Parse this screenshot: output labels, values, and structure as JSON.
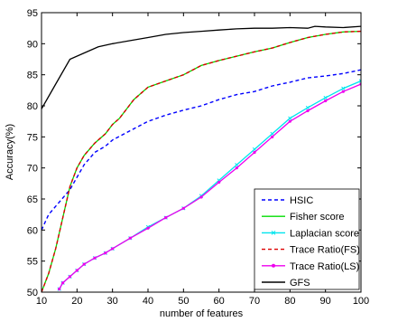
{
  "chart_data": {
    "type": "line",
    "title": "",
    "xlabel": "number of features",
    "ylabel": "Accuracy(%)",
    "xlim": [
      10,
      100
    ],
    "ylim": [
      50,
      95
    ],
    "xticks": [
      10,
      20,
      30,
      40,
      50,
      60,
      70,
      80,
      90,
      100
    ],
    "yticks": [
      50,
      55,
      60,
      65,
      70,
      75,
      80,
      85,
      90,
      95
    ],
    "xtick_labels": [
      "10",
      "20",
      "30",
      "40",
      "50",
      "60",
      "70",
      "80",
      "90",
      "100"
    ],
    "ytick_labels": [
      "50",
      "55",
      "60",
      "65",
      "70",
      "75",
      "80",
      "85",
      "90",
      "95"
    ],
    "grid": false,
    "legend_position": "bottom-right",
    "series": [
      {
        "name": "HSIC",
        "color": "#0000ff",
        "style": "dashed",
        "marker": "none",
        "x": [
          10,
          12,
          15,
          18,
          20,
          22,
          25,
          28,
          30,
          35,
          40,
          45,
          50,
          55,
          60,
          65,
          70,
          75,
          80,
          85,
          90,
          95,
          100
        ],
        "y": [
          60,
          62.5,
          64.5,
          66.5,
          68.5,
          70.5,
          72.5,
          73.5,
          74.5,
          76,
          77.5,
          78.5,
          79.3,
          80,
          81,
          81.8,
          82.3,
          83.2,
          83.8,
          84.5,
          84.8,
          85.2,
          85.8
        ]
      },
      {
        "name": "Fisher score",
        "color": "#00dd00",
        "style": "solid",
        "marker": "none",
        "x": [
          10,
          12,
          14,
          16,
          18,
          20,
          22,
          25,
          28,
          30,
          32,
          34,
          36,
          38,
          40,
          45,
          50,
          55,
          60,
          65,
          70,
          75,
          80,
          85,
          90,
          95,
          100
        ],
        "y": [
          50,
          53,
          57,
          62,
          67,
          70,
          72,
          74,
          75.5,
          77,
          78,
          79.5,
          81,
          82,
          83,
          84,
          85,
          86.5,
          87.3,
          88,
          88.7,
          89.3,
          90.2,
          91,
          91.5,
          91.9,
          92
        ],
        "x_stride_note": ""
      },
      {
        "name": "Laplacian score",
        "color": "#00e5ee",
        "style": "solid",
        "marker": "x",
        "x": [
          15,
          16,
          18,
          20,
          22,
          25,
          28,
          30,
          35,
          40,
          45,
          50,
          55,
          60,
          65,
          70,
          75,
          80,
          85,
          90,
          95,
          100
        ],
        "y": [
          50.5,
          51.5,
          52.5,
          53.5,
          54.5,
          55.5,
          56.3,
          57,
          58.7,
          60.5,
          62,
          63.5,
          65.5,
          68,
          70.5,
          73,
          75.5,
          78,
          79.7,
          81.3,
          82.8,
          84
        ]
      },
      {
        "name": "Trace Ratio(FS)",
        "color": "#dd0000",
        "style": "dashed",
        "marker": "none",
        "x": [
          10,
          12,
          14,
          16,
          18,
          20,
          22,
          25,
          28,
          30,
          32,
          34,
          36,
          38,
          40,
          45,
          50,
          55,
          60,
          65,
          70,
          75,
          80,
          85,
          90,
          95,
          100
        ],
        "y": [
          50,
          53,
          57,
          62,
          67,
          70,
          72,
          74,
          75.5,
          77,
          78,
          79.5,
          81,
          82,
          83,
          84,
          85,
          86.5,
          87.3,
          88,
          88.7,
          89.3,
          90.2,
          91,
          91.5,
          91.9,
          92
        ]
      },
      {
        "name": "Trace Ratio(LS)",
        "color": "#ee00ee",
        "style": "solid",
        "marker": "dot",
        "x": [
          15,
          16,
          18,
          20,
          22,
          25,
          28,
          30,
          35,
          40,
          45,
          50,
          55,
          60,
          65,
          70,
          75,
          80,
          85,
          90,
          95,
          100
        ],
        "y": [
          50.5,
          51.5,
          52.5,
          53.5,
          54.5,
          55.5,
          56.3,
          57,
          58.7,
          60.3,
          62,
          63.5,
          65.3,
          67.7,
          70,
          72.5,
          75,
          77.5,
          79.2,
          80.8,
          82.3,
          83.5
        ]
      },
      {
        "name": "GFS",
        "color": "#000000",
        "style": "solid",
        "marker": "none",
        "x": [
          10,
          14,
          18,
          22,
          26,
          30,
          35,
          40,
          45,
          50,
          55,
          60,
          65,
          70,
          75,
          80,
          85,
          87,
          90,
          95,
          100
        ],
        "y": [
          79.5,
          83.5,
          87.5,
          88.5,
          89.5,
          90,
          90.5,
          91,
          91.5,
          91.8,
          92,
          92.2,
          92.4,
          92.5,
          92.5,
          92.6,
          92.5,
          92.8,
          92.7,
          92.6,
          92.8
        ]
      }
    ]
  }
}
